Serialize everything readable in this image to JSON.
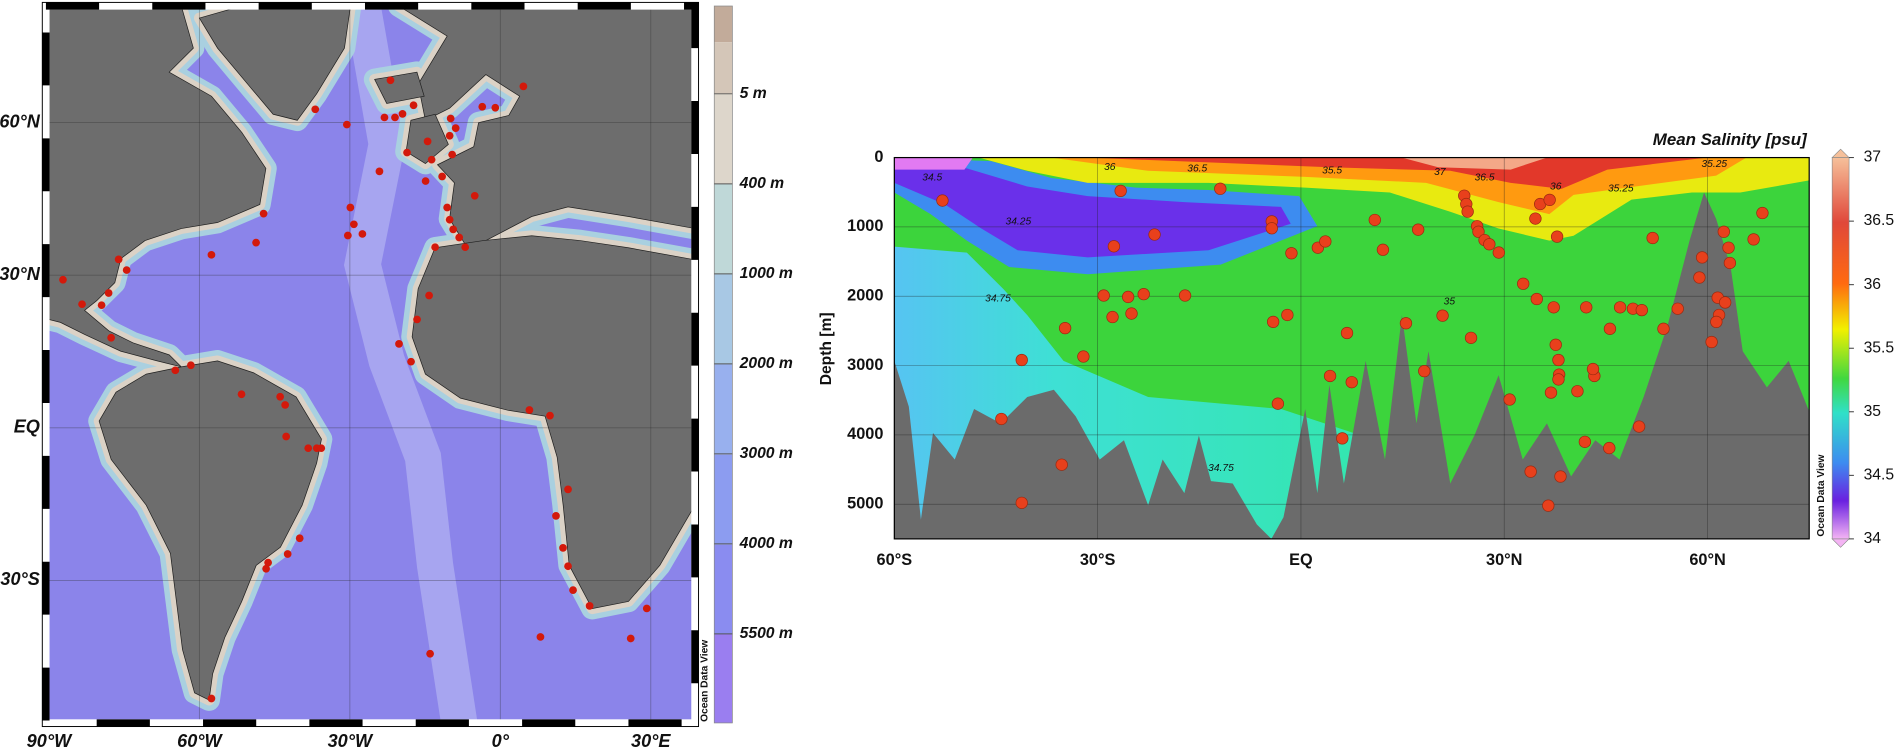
{
  "chart_data": [
    {
      "type": "map",
      "xlim": [
        -90.6,
        38.8
      ],
      "ylim": [
        -58,
        82.9
      ],
      "xticks": [
        {
          "value": -90,
          "label": "90°W"
        },
        {
          "value": -60,
          "label": "60°W"
        },
        {
          "value": -30,
          "label": "30°W"
        },
        {
          "value": 0,
          "label": "0°"
        },
        {
          "value": 30,
          "label": "30°E"
        }
      ],
      "yticks": [
        {
          "value": -30,
          "label": "30°S"
        },
        {
          "value": 0,
          "label": "EQ"
        },
        {
          "value": 30,
          "label": "30°N"
        },
        {
          "value": 60,
          "label": "60°N"
        }
      ],
      "grid": true,
      "color": "#d3190b",
      "x": [
        -21.9,
        4.6,
        -3.6,
        -1.0,
        -36.9,
        -30.6,
        -23.1,
        -21.0,
        -19.5,
        -17.3,
        -9.9,
        -8.9,
        -10.1,
        -14.5,
        -18.6,
        -13.7,
        -9.6,
        -11.6,
        -14.9,
        -24.1,
        -5.1,
        -47.2,
        -29.9,
        -30.4,
        -27.5,
        -29.2,
        -10.6,
        -10.1,
        -9.4,
        -8.2,
        -7.0,
        -13.0,
        -48.7,
        -57.6,
        -76.1,
        -74.5,
        -87.2,
        -78.1,
        -83.4,
        -79.5,
        -77.6,
        -64.8,
        -61.7,
        -14.2,
        -16.6,
        -20.2,
        -17.8,
        -51.6,
        -43.9,
        -42.9,
        -42.7,
        -38.3,
        -36.6,
        -35.7,
        -40.0,
        -42.4,
        -46.3,
        -46.7,
        5.8,
        9.9,
        13.5,
        11.1,
        12.5,
        13.5,
        14.5,
        17.8,
        29.2,
        26.0,
        8.0,
        -14.0,
        -57.6
      ],
      "values": [
        68.3,
        67.1,
        63.1,
        62.9,
        62.6,
        59.6,
        61.0,
        61.0,
        61.7,
        63.4,
        60.8,
        58.9,
        57.4,
        56.3,
        54.1,
        52.7,
        53.7,
        49.4,
        48.5,
        50.4,
        45.6,
        42.1,
        43.3,
        37.8,
        38.1,
        40.0,
        43.3,
        40.9,
        39.0,
        37.4,
        35.5,
        35.5,
        36.4,
        34.0,
        33.1,
        31.0,
        29.1,
        26.5,
        24.3,
        24.1,
        17.7,
        11.3,
        12.3,
        26.0,
        21.3,
        16.5,
        13.0,
        6.6,
        6.1,
        4.5,
        -1.7,
        -4.0,
        -4.0,
        -4.0,
        -21.7,
        -24.8,
        -26.5,
        -27.7,
        3.5,
        2.4,
        -12.1,
        -17.3,
        -23.6,
        -27.2,
        -31.9,
        -35.0,
        -35.5,
        -41.4,
        -41.1,
        -44.4,
        -53.2
      ],
      "colorbar_ticks": [
        {
          "value": 5,
          "label": "5 m"
        },
        {
          "value": 400,
          "label": "400 m"
        },
        {
          "value": 1000,
          "label": "1000 m"
        },
        {
          "value": 2000,
          "label": "2000 m"
        },
        {
          "value": 3000,
          "label": "3000 m"
        },
        {
          "value": 4000,
          "label": "4000 m"
        },
        {
          "value": 5500,
          "label": "5500 m"
        }
      ],
      "watermark": "Ocean Data View"
    },
    {
      "type": "section",
      "title": "Mean Salinity [psu]",
      "y_label": "Depth [m]",
      "xlim": [
        -60,
        75
      ],
      "ylim": [
        0,
        5500
      ],
      "y_inverted": true,
      "xticks": [
        {
          "value": -60,
          "label": "60°S"
        },
        {
          "value": -30,
          "label": "30°S"
        },
        {
          "value": 0,
          "label": "EQ"
        },
        {
          "value": 30,
          "label": "30°N"
        },
        {
          "value": 60,
          "label": "60°N"
        }
      ],
      "yticks": [
        0,
        1000,
        2000,
        3000,
        4000,
        5000
      ],
      "grid": true,
      "color": "#e8401c",
      "x": [
        -52.9,
        -26.6,
        -11.9,
        -4.3,
        -4.3,
        10.9,
        17.3,
        24.1,
        24.4,
        24.6,
        26.0,
        26.2,
        34.6,
        35.3,
        36.7,
        37.8,
        -21.6,
        -27.6,
        -1.4,
        2.5,
        3.6,
        12.1,
        27.1,
        27.8,
        29.2,
        32.8,
        51.9,
        59.2,
        62.4,
        63.1,
        63.3,
        66.8,
        68.1,
        -29.1,
        -25.5,
        -23.2,
        -17.1,
        -27.8,
        -25.0,
        -34.8,
        -32.1,
        -41.2,
        -4.1,
        -2.0,
        6.8,
        15.5,
        20.9,
        25.1,
        34.8,
        37.3,
        37.6,
        42.1,
        45.6,
        47.1,
        49.0,
        50.3,
        55.6,
        53.5,
        58.8,
        61.5,
        61.7,
        61.3,
        60.6,
        62.6,
        4.3,
        7.5,
        18.2,
        38.0,
        38.1,
        38.0,
        43.3,
        43.1,
        30.8,
        36.9,
        40.8,
        -3.4,
        -44.2,
        49.9,
        6.1,
        41.9,
        45.5,
        33.9,
        38.3,
        -35.3,
        -41.2,
        36.5
      ],
      "values": [
        620,
        480,
        450,
        920,
        1020,
        900,
        1040,
        550,
        670,
        780,
        990,
        1070,
        880,
        670,
        610,
        1140,
        1110,
        1280,
        1380,
        1300,
        1210,
        1330,
        1190,
        1250,
        1370,
        1820,
        1160,
        1440,
        1070,
        1300,
        1520,
        1180,
        800,
        1990,
        2010,
        1970,
        1990,
        2300,
        2250,
        2460,
        2870,
        2920,
        2370,
        2270,
        2530,
        2390,
        2280,
        2600,
        2040,
        2160,
        2700,
        2160,
        2470,
        2160,
        2180,
        2200,
        2180,
        2470,
        1730,
        2020,
        2270,
        2370,
        2660,
        2090,
        3150,
        3240,
        3080,
        2920,
        3130,
        3200,
        3150,
        3050,
        3490,
        3390,
        3370,
        3550,
        3770,
        3880,
        4050,
        4100,
        4190,
        4530,
        4600,
        4430,
        4980,
        5020
      ],
      "clim": [
        34,
        37
      ],
      "colorbar_ticks": [
        34,
        34.5,
        35,
        35.5,
        36,
        36.5,
        37
      ],
      "contour_labels": [
        {
          "label": "34.5",
          "x": -54.4,
          "y": 290
        },
        {
          "label": "34.25",
          "x": -41.7,
          "y": 930
        },
        {
          "label": "36",
          "x": -28.2,
          "y": 140
        },
        {
          "label": "36.5",
          "x": -15.3,
          "y": 160
        },
        {
          "label": "35.5",
          "x": 4.6,
          "y": 190
        },
        {
          "label": "37",
          "x": 20.5,
          "y": 210
        },
        {
          "label": "36.5",
          "x": 27.1,
          "y": 290
        },
        {
          "label": "36",
          "x": 37.6,
          "y": 420
        },
        {
          "label": "35.25",
          "x": 47.2,
          "y": 450
        },
        {
          "label": "35.25",
          "x": 61.0,
          "y": 100
        },
        {
          "label": "34.75",
          "x": -44.7,
          "y": 2040
        },
        {
          "label": "35",
          "x": 21.9,
          "y": 2080
        },
        {
          "label": "34.75",
          "x": -11.8,
          "y": 4480
        }
      ],
      "watermark": "Ocean Data View"
    }
  ]
}
